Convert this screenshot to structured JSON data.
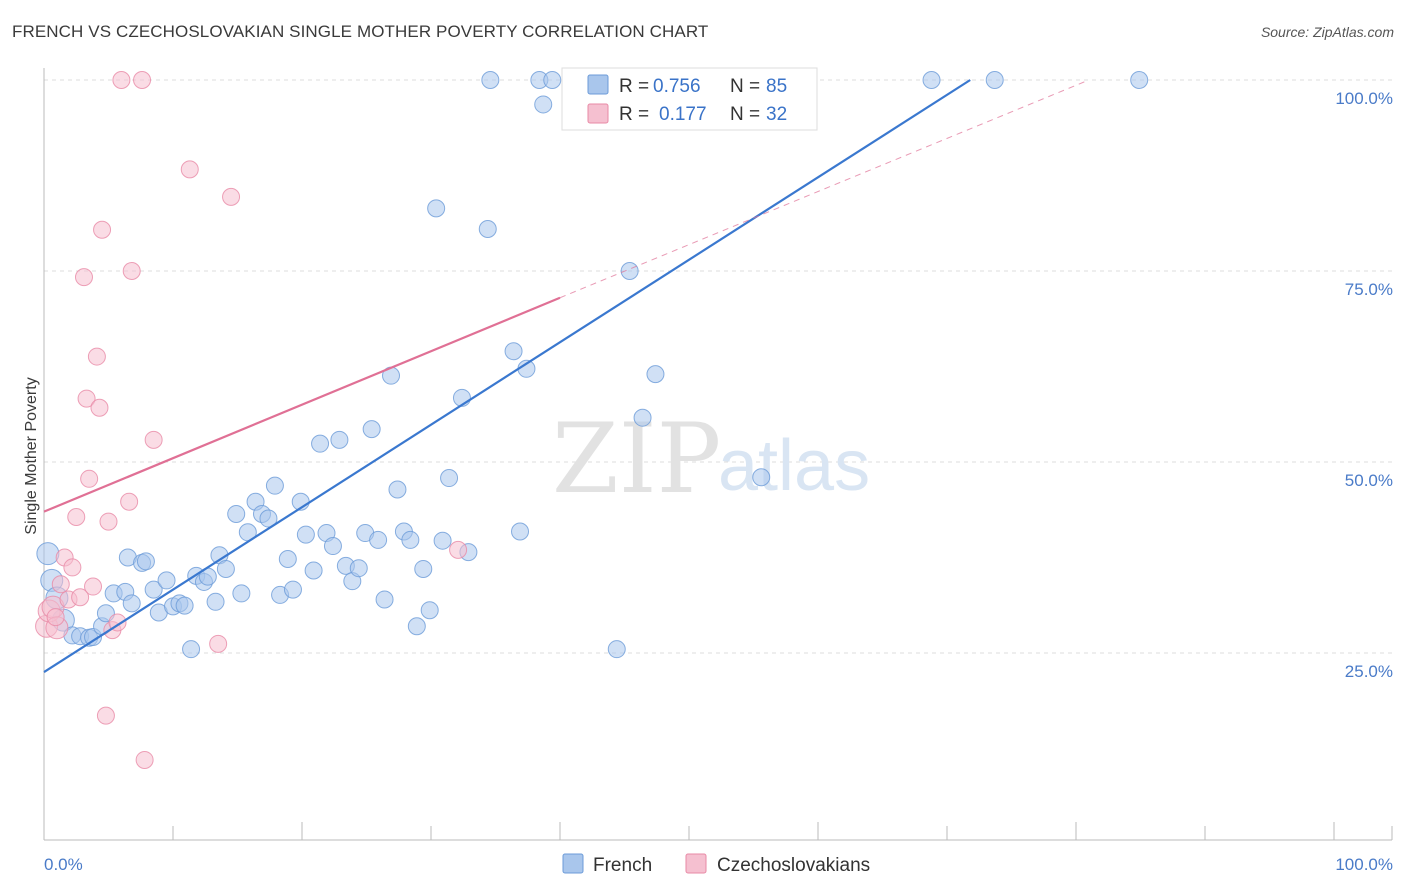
{
  "title": "FRENCH VS CZECHOSLOVAKIAN SINGLE MOTHER POVERTY CORRELATION CHART",
  "source": "Source: ZipAtlas.com",
  "watermark": {
    "zip": "ZIP",
    "atlas": "atlas"
  },
  "colors": {
    "french": "#6c9bd8",
    "french_fill": "#a9c6ec",
    "french_line": "#3a78cf",
    "czech": "#e88aa6",
    "czech_fill": "#f5c0d0",
    "czech_line": "#e07095",
    "grid": "#dddddd"
  },
  "legend": {
    "rows": [
      {
        "r_label": "R =",
        "r_value": "0.756",
        "n_label": "N =",
        "n_value": "85"
      },
      {
        "r_label": "R =",
        "r_value": "0.177",
        "n_label": "N =",
        "n_value": "32"
      }
    ]
  },
  "bottom_legend": [
    "French",
    "Czechoslovakians"
  ],
  "chart_data": {
    "type": "scatter",
    "title": "FRENCH VS CZECHOSLOVAKIAN SINGLE MOTHER POVERTY CORRELATION CHART",
    "xlabel": "",
    "ylabel": "Single Mother Poverty",
    "xlim": [
      0,
      100
    ],
    "ylim": [
      0,
      103
    ],
    "x_tick_labels": [
      "0.0%",
      "100.0%"
    ],
    "y_ticks": [
      25,
      50,
      75,
      100
    ],
    "y_tick_labels": [
      "25.0%",
      "50.0%",
      "75.0%",
      "100.0%"
    ],
    "grid": true,
    "legend_position": "top-center",
    "series": [
      {
        "name": "French",
        "r": 0.756,
        "n": 85,
        "trend": {
          "x": [
            0,
            71.8
          ],
          "y": [
            22.5,
            100
          ]
        },
        "points": [
          [
            0.3,
            38
          ],
          [
            0.6,
            34.5
          ],
          [
            1,
            32.2
          ],
          [
            1.5,
            29.3
          ],
          [
            2.2,
            27.3
          ],
          [
            2.8,
            27.2
          ],
          [
            3.5,
            27
          ],
          [
            3.8,
            27.1
          ],
          [
            4.5,
            28.5
          ],
          [
            4.8,
            30.2
          ],
          [
            5.4,
            32.8
          ],
          [
            6.3,
            33
          ],
          [
            6.5,
            37.5
          ],
          [
            6.8,
            31.5
          ],
          [
            7.6,
            36.8
          ],
          [
            7.9,
            37
          ],
          [
            8.5,
            33.3
          ],
          [
            8.9,
            30.3
          ],
          [
            9.5,
            34.5
          ],
          [
            10,
            31.1
          ],
          [
            10.5,
            31.5
          ],
          [
            10.9,
            31.2
          ],
          [
            11.4,
            25.5
          ],
          [
            11.8,
            35.1
          ],
          [
            12.4,
            34.3
          ],
          [
            12.7,
            35
          ],
          [
            13.3,
            31.7
          ],
          [
            13.6,
            37.8
          ],
          [
            14.1,
            36
          ],
          [
            14.9,
            43.2
          ],
          [
            15.3,
            32.8
          ],
          [
            15.8,
            40.8
          ],
          [
            16.4,
            44.8
          ],
          [
            16.9,
            43.2
          ],
          [
            17.4,
            42.6
          ],
          [
            17.9,
            46.9
          ],
          [
            18.3,
            32.6
          ],
          [
            18.9,
            37.3
          ],
          [
            19.3,
            33.3
          ],
          [
            19.9,
            44.8
          ],
          [
            20.3,
            40.5
          ],
          [
            20.9,
            35.8
          ],
          [
            21.4,
            52.4
          ],
          [
            21.9,
            40.7
          ],
          [
            22.4,
            39
          ],
          [
            22.9,
            52.9
          ],
          [
            23.4,
            36.4
          ],
          [
            23.9,
            34.4
          ],
          [
            24.4,
            36.1
          ],
          [
            24.9,
            40.7
          ],
          [
            25.4,
            54.3
          ],
          [
            25.9,
            39.8
          ],
          [
            26.4,
            32
          ],
          [
            26.9,
            61.3
          ],
          [
            27.4,
            46.4
          ],
          [
            27.9,
            40.9
          ],
          [
            28.4,
            39.8
          ],
          [
            28.9,
            28.5
          ],
          [
            29.4,
            36
          ],
          [
            29.9,
            30.6
          ],
          [
            30.4,
            83.2
          ],
          [
            30.9,
            39.7
          ],
          [
            31.4,
            47.9
          ],
          [
            32.4,
            58.4
          ],
          [
            32.9,
            38.2
          ],
          [
            34.4,
            80.5
          ],
          [
            34.6,
            100
          ],
          [
            36.4,
            64.5
          ],
          [
            36.9,
            40.9
          ],
          [
            37.4,
            62.2
          ],
          [
            38.4,
            100
          ],
          [
            38.7,
            96.8
          ],
          [
            39.4,
            100
          ],
          [
            41.4,
            100
          ],
          [
            44.4,
            25.5
          ],
          [
            44.9,
            100
          ],
          [
            45.4,
            75
          ],
          [
            46.4,
            55.8
          ],
          [
            47.4,
            61.5
          ],
          [
            49.4,
            100
          ],
          [
            50.5,
            100
          ],
          [
            55.6,
            48
          ],
          [
            68.8,
            100
          ],
          [
            73.7,
            100
          ],
          [
            84.9,
            100
          ]
        ]
      },
      {
        "name": "Czechoslovakians",
        "r": 0.177,
        "n": 32,
        "trend": {
          "x": [
            0,
            40
          ],
          "y": [
            43.5,
            71.5
          ]
        },
        "trend_extended": {
          "x": [
            40,
            81
          ],
          "y": [
            71.5,
            100
          ]
        },
        "points": [
          [
            0.2,
            28.5
          ],
          [
            0.4,
            30.5
          ],
          [
            0.7,
            31
          ],
          [
            1,
            28.3
          ],
          [
            1.3,
            34
          ],
          [
            1.6,
            37.5
          ],
          [
            1.9,
            32
          ],
          [
            2.2,
            36.2
          ],
          [
            2.5,
            42.8
          ],
          [
            2.8,
            32.3
          ],
          [
            3.1,
            74.2
          ],
          [
            3.3,
            58.3
          ],
          [
            3.5,
            47.8
          ],
          [
            3.8,
            33.7
          ],
          [
            4.1,
            63.8
          ],
          [
            4.3,
            57.1
          ],
          [
            4.5,
            80.4
          ],
          [
            4.8,
            16.8
          ],
          [
            5,
            42.2
          ],
          [
            5.3,
            28
          ],
          [
            5.7,
            29
          ],
          [
            6,
            100
          ],
          [
            6.6,
            44.8
          ],
          [
            6.8,
            75
          ],
          [
            7.6,
            100
          ],
          [
            7.8,
            11
          ],
          [
            8.5,
            52.9
          ],
          [
            11.3,
            88.3
          ],
          [
            13.5,
            26.2
          ],
          [
            14.5,
            84.7
          ],
          [
            32.1,
            38.5
          ],
          [
            0.9,
            29.7
          ]
        ]
      }
    ]
  }
}
